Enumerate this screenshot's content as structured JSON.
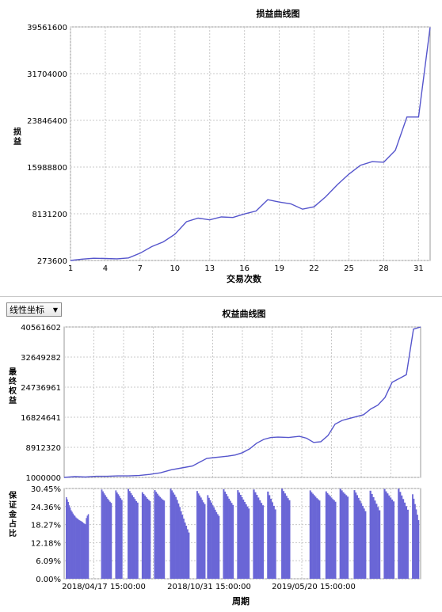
{
  "chart_data": [
    {
      "type": "line",
      "title": "损益曲线图",
      "xlabel": "交易次数",
      "ylabel": "损益",
      "x_ticks": [
        "1",
        "4",
        "7",
        "10",
        "13",
        "16",
        "19",
        "22",
        "25",
        "28",
        "31"
      ],
      "y_ticks": [
        "273600",
        "8131200",
        "15988800",
        "23846400",
        "31704000",
        "39561600"
      ],
      "xlim": [
        1,
        32
      ],
      "ylim": [
        273600,
        39561600
      ],
      "grid": true,
      "series": [
        {
          "color": "#5555cc",
          "x": [
            1,
            2,
            3,
            4,
            5,
            6,
            7,
            8,
            9,
            10,
            11,
            12,
            13,
            14,
            15,
            16,
            17,
            18,
            19,
            20,
            21,
            22,
            23,
            24,
            25,
            26,
            27,
            28,
            29,
            30,
            31,
            32
          ],
          "y": [
            273600,
            500000,
            650000,
            600000,
            550000,
            700000,
            1500000,
            2600000,
            3400000,
            4700000,
            6800000,
            7400000,
            7100000,
            7600000,
            7500000,
            8100000,
            8600000,
            10500000,
            10100000,
            9800000,
            8900000,
            9300000,
            11000000,
            13000000,
            14800000,
            16300000,
            16900000,
            16800000,
            18800000,
            24400000,
            24400000,
            39500000
          ]
        }
      ]
    },
    {
      "type": "line",
      "title": "权益曲线图",
      "ylabel": "最终权益",
      "y_ticks": [
        "1000000",
        "8912320",
        "16824641",
        "24736961",
        "32649282",
        "40561602"
      ],
      "ylim": [
        1000000,
        40561602
      ],
      "grid": true,
      "series": [
        {
          "color": "#5555cc",
          "x": [
            0,
            0.03,
            0.06,
            0.09,
            0.12,
            0.15,
            0.18,
            0.21,
            0.24,
            0.27,
            0.3,
            0.33,
            0.36,
            0.38,
            0.4,
            0.42,
            0.44,
            0.46,
            0.48,
            0.5,
            0.52,
            0.54,
            0.56,
            0.58,
            0.6,
            0.63,
            0.66,
            0.68,
            0.7,
            0.72,
            0.74,
            0.76,
            0.78,
            0.8,
            0.82,
            0.84,
            0.86,
            0.88,
            0.9,
            0.92,
            0.94,
            0.96,
            0.98,
            1.0
          ],
          "y": [
            1000000,
            1200000,
            1100000,
            1300000,
            1300000,
            1400000,
            1400000,
            1500000,
            1800000,
            2200000,
            3000000,
            3500000,
            4000000,
            5000000,
            6000000,
            6200000,
            6400000,
            6600000,
            6900000,
            7500000,
            8500000,
            10000000,
            11000000,
            11500000,
            11600000,
            11500000,
            11800000,
            11300000,
            10200000,
            10400000,
            12000000,
            15000000,
            16000000,
            16500000,
            17000000,
            17500000,
            19000000,
            20000000,
            22000000,
            26000000,
            27000000,
            28000000,
            40000000,
            40561602
          ]
        }
      ]
    },
    {
      "type": "bar",
      "ylabel": "保证金占比",
      "xlabel": "周期",
      "y_ticks": [
        "0.00%",
        "6.09%",
        "12.18%",
        "18.27%",
        "24.36%",
        "30.45%"
      ],
      "x_ticks": [
        "2018/04/17 15:00:00",
        "2018/10/31 15:00:00",
        "2019/05/20 15:00:00"
      ],
      "ylim": [
        0,
        30.45
      ],
      "bar_color": "#6a66d6",
      "segments": [
        {
          "start": 0.0,
          "end": 0.065,
          "values": [
            27.5,
            26.8,
            25.9,
            24.8,
            24.0,
            23.1,
            22.6,
            22.0,
            21.5,
            21.2,
            20.7,
            20.4,
            20.2,
            19.9,
            19.7,
            19.5,
            19.3,
            19.1,
            18.8,
            18.6,
            18.4,
            20.5,
            21.3,
            21.8
          ]
        },
        {
          "start": 0.1,
          "end": 0.13,
          "values": [
            30.1,
            29.5,
            28.8,
            28.2,
            27.6,
            27.0,
            26.5,
            26.0,
            25.6
          ]
        },
        {
          "start": 0.14,
          "end": 0.16,
          "values": [
            29.8,
            29.1,
            28.5,
            27.9,
            27.2,
            26.6
          ]
        },
        {
          "start": 0.175,
          "end": 0.205,
          "values": [
            30.3,
            29.6,
            28.9,
            28.2,
            27.5,
            26.9,
            26.2,
            25.7
          ]
        },
        {
          "start": 0.215,
          "end": 0.24,
          "values": [
            29.2,
            28.6,
            28.1,
            27.5,
            27.0,
            26.6,
            26.2
          ]
        },
        {
          "start": 0.25,
          "end": 0.28,
          "values": [
            29.9,
            29.3,
            28.7,
            28.1,
            27.6,
            27.1,
            26.7,
            26.4
          ]
        },
        {
          "start": 0.295,
          "end": 0.35,
          "values": [
            30.4,
            29.8,
            29.1,
            28.4,
            27.6,
            26.6,
            25.4,
            24.2,
            22.8,
            21.6,
            20.3,
            19.0,
            17.9,
            16.7,
            15.6
          ]
        },
        {
          "start": 0.37,
          "end": 0.395,
          "values": [
            29.6,
            28.8,
            28.1,
            27.4,
            26.6,
            25.8,
            25.2
          ]
        },
        {
          "start": 0.4,
          "end": 0.435,
          "values": [
            28.2,
            27.3,
            26.5,
            25.7,
            24.8,
            24.1,
            23.3,
            22.5,
            21.8,
            21.2
          ]
        },
        {
          "start": 0.445,
          "end": 0.475,
          "values": [
            30.2,
            29.4,
            28.6,
            27.8,
            27.0,
            26.3,
            25.6,
            24.9
          ]
        },
        {
          "start": 0.485,
          "end": 0.52,
          "values": [
            29.9,
            29.1,
            28.3,
            27.5,
            26.7,
            25.9,
            25.1,
            24.4,
            23.7
          ]
        },
        {
          "start": 0.53,
          "end": 0.56,
          "values": [
            30.1,
            29.2,
            28.3,
            27.4,
            26.5,
            25.6,
            24.8
          ]
        },
        {
          "start": 0.57,
          "end": 0.595,
          "values": [
            29.4,
            28.2,
            27.0,
            25.8,
            24.6,
            23.4
          ]
        },
        {
          "start": 0.61,
          "end": 0.635,
          "values": [
            30.4,
            29.6,
            28.8,
            28.0,
            27.2,
            26.5
          ]
        },
        {
          "start": 0.69,
          "end": 0.72,
          "values": [
            29.8,
            29.2,
            28.7,
            28.2,
            27.7,
            27.2,
            26.8,
            26.4
          ]
        },
        {
          "start": 0.735,
          "end": 0.765,
          "values": [
            29.5,
            28.9,
            28.4,
            27.9,
            27.4,
            26.9,
            26.5,
            26.0
          ]
        },
        {
          "start": 0.775,
          "end": 0.8,
          "values": [
            30.4,
            29.8,
            29.2,
            28.7,
            28.2,
            27.7
          ]
        },
        {
          "start": 0.815,
          "end": 0.85,
          "values": [
            29.9,
            29.1,
            28.2,
            27.3,
            26.4,
            25.5,
            24.6,
            23.7,
            22.8
          ]
        },
        {
          "start": 0.86,
          "end": 0.89,
          "values": [
            29.7,
            28.6,
            27.5,
            26.4,
            25.3,
            24.2,
            23.1
          ]
        },
        {
          "start": 0.9,
          "end": 0.93,
          "values": [
            30.3,
            29.5,
            28.8,
            28.1,
            27.4,
            26.7,
            26.1
          ]
        },
        {
          "start": 0.94,
          "end": 0.97,
          "values": [
            30.4,
            29.3,
            28.1,
            26.9,
            25.7,
            24.5,
            23.3
          ]
        },
        {
          "start": 0.98,
          "end": 1.0,
          "values": [
            28.5,
            27.0,
            25.2,
            23.4,
            21.6,
            19.8
          ]
        }
      ]
    }
  ],
  "controls": {
    "scale_select": {
      "label": "线性坐标",
      "arrow_icon": "triangle-down-icon"
    }
  }
}
